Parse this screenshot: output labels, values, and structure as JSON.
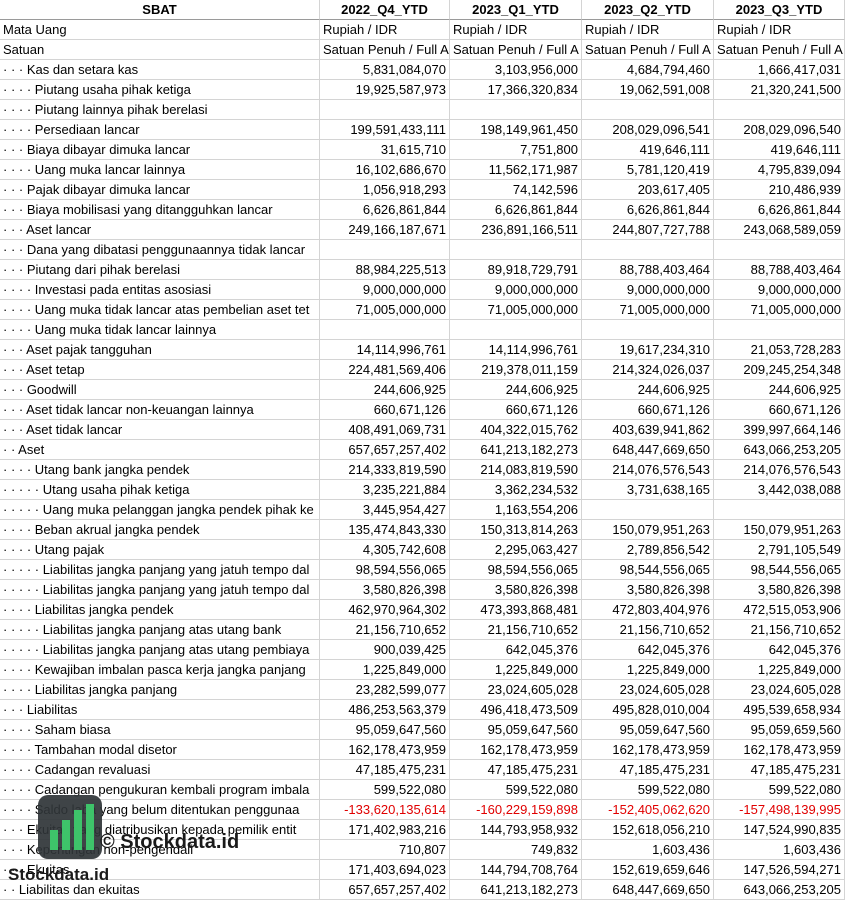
{
  "table": {
    "header": [
      "SBAT",
      "2022_Q4_YTD",
      "2023_Q1_YTD",
      "2023_Q2_YTD",
      "2023_Q3_YTD"
    ],
    "rows": [
      [
        "Mata Uang",
        "Rupiah / IDR",
        "Rupiah / IDR",
        "Rupiah / IDR",
        "Rupiah / IDR"
      ],
      [
        "Satuan",
        "Satuan Penuh / Full A",
        "Satuan Penuh / Full A",
        "Satuan Penuh / Full A",
        "Satuan Penuh / Full A"
      ],
      [
        "· · · Kas dan setara kas",
        "5,831,084,070",
        "3,103,956,000",
        "4,684,794,460",
        "1,666,417,031"
      ],
      [
        "· · · · Piutang usaha pihak ketiga",
        "19,925,587,973",
        "17,366,320,834",
        "19,062,591,008",
        "21,320,241,500"
      ],
      [
        "· · · · Piutang lainnya pihak berelasi",
        null,
        null,
        null,
        null
      ],
      [
        "· · · · Persediaan lancar",
        "199,591,433,111",
        "198,149,961,450",
        "208,029,096,541",
        "208,029,096,540"
      ],
      [
        "· · · Biaya dibayar dimuka lancar",
        "31,615,710",
        "7,751,800",
        "419,646,111",
        "419,646,111"
      ],
      [
        "· · · · Uang muka lancar lainnya",
        "16,102,686,670",
        "11,562,171,987",
        "5,781,120,419",
        "4,795,839,094"
      ],
      [
        "· · · Pajak dibayar dimuka lancar",
        "1,056,918,293",
        "74,142,596",
        "203,617,405",
        "210,486,939"
      ],
      [
        "· · · Biaya mobilisasi yang ditangguhkan lancar",
        "6,626,861,844",
        "6,626,861,844",
        "6,626,861,844",
        "6,626,861,844"
      ],
      [
        "· · · Aset lancar",
        "249,166,187,671",
        "236,891,166,511",
        "244,807,727,788",
        "243,068,589,059"
      ],
      [
        "· · · Dana yang dibatasi penggunaannya tidak lancar",
        null,
        null,
        null,
        null
      ],
      [
        "· · · Piutang dari pihak berelasi",
        "88,984,225,513",
        "89,918,729,791",
        "88,788,403,464",
        "88,788,403,464"
      ],
      [
        "· · · · Investasi pada entitas asosiasi",
        "9,000,000,000",
        "9,000,000,000",
        "9,000,000,000",
        "9,000,000,000"
      ],
      [
        "· · · · Uang muka tidak lancar atas pembelian aset tet",
        "71,005,000,000",
        "71,005,000,000",
        "71,005,000,000",
        "71,005,000,000"
      ],
      [
        "· · · · Uang muka tidak lancar lainnya",
        null,
        null,
        null,
        null
      ],
      [
        "· · · Aset pajak tangguhan",
        "14,114,996,761",
        "14,114,996,761",
        "19,617,234,310",
        "21,053,728,283"
      ],
      [
        "· · · Aset tetap",
        "224,481,569,406",
        "219,378,011,159",
        "214,324,026,037",
        "209,245,254,348"
      ],
      [
        "· · · Goodwill",
        "244,606,925",
        "244,606,925",
        "244,606,925",
        "244,606,925"
      ],
      [
        "· · · Aset tidak lancar non-keuangan lainnya",
        "660,671,126",
        "660,671,126",
        "660,671,126",
        "660,671,126"
      ],
      [
        "· · · Aset tidak lancar",
        "408,491,069,731",
        "404,322,015,762",
        "403,639,941,862",
        "399,997,664,146"
      ],
      [
        "· · Aset",
        "657,657,257,402",
        "641,213,182,273",
        "648,447,669,650",
        "643,066,253,205"
      ],
      [
        "· · · · Utang bank jangka pendek",
        "214,333,819,590",
        "214,083,819,590",
        "214,076,576,543",
        "214,076,576,543"
      ],
      [
        "· · · · · Utang usaha pihak ketiga",
        "3,235,221,884",
        "3,362,234,532",
        "3,731,638,165",
        "3,442,038,088"
      ],
      [
        "· · · · · Uang muka pelanggan jangka pendek pihak ke",
        "3,445,954,427",
        "1,163,554,206",
        null,
        null
      ],
      [
        "· · · · Beban akrual jangka pendek",
        "135,474,843,330",
        "150,313,814,263",
        "150,079,951,263",
        "150,079,951,263"
      ],
      [
        "· · · · Utang pajak",
        "4,305,742,608",
        "2,295,063,427",
        "2,789,856,542",
        "2,791,105,549"
      ],
      [
        "· · · · · Liabilitas jangka panjang yang jatuh tempo dal",
        "98,594,556,065",
        "98,594,556,065",
        "98,544,556,065",
        "98,544,556,065"
      ],
      [
        "· · · · · Liabilitas jangka panjang yang jatuh tempo dal",
        "3,580,826,398",
        "3,580,826,398",
        "3,580,826,398",
        "3,580,826,398"
      ],
      [
        "· · · · Liabilitas jangka pendek",
        "462,970,964,302",
        "473,393,868,481",
        "472,803,404,976",
        "472,515,053,906"
      ],
      [
        "· · · · · Liabilitas jangka panjang atas utang bank",
        "21,156,710,652",
        "21,156,710,652",
        "21,156,710,652",
        "21,156,710,652"
      ],
      [
        "· · · · · Liabilitas jangka panjang atas utang pembiaya",
        "900,039,425",
        "642,045,376",
        "642,045,376",
        "642,045,376"
      ],
      [
        "· · · · Kewajiban imbalan pasca kerja jangka panjang",
        "1,225,849,000",
        "1,225,849,000",
        "1,225,849,000",
        "1,225,849,000"
      ],
      [
        "· · · · Liabilitas jangka panjang",
        "23,282,599,077",
        "23,024,605,028",
        "23,024,605,028",
        "23,024,605,028"
      ],
      [
        "· · · Liabilitas",
        "486,253,563,379",
        "496,418,473,509",
        "495,828,010,004",
        "495,539,658,934"
      ],
      [
        "· · · · Saham biasa",
        "95,059,647,560",
        "95,059,647,560",
        "95,059,647,560",
        "95,059,659,560"
      ],
      [
        "· · · · Tambahan modal disetor",
        "162,178,473,959",
        "162,178,473,959",
        "162,178,473,959",
        "162,178,473,959"
      ],
      [
        "· · · · Cadangan revaluasi",
        "47,185,475,231",
        "47,185,475,231",
        "47,185,475,231",
        "47,185,475,231"
      ],
      [
        "· · · · Cadangan pengukuran kembali program imbala",
        "599,522,080",
        "599,522,080",
        "599,522,080",
        "599,522,080"
      ],
      [
        "· · · · Saldo laba yang belum ditentukan penggunaa",
        "-133,620,135,614",
        "-160,229,159,898",
        "-152,405,062,620",
        "-157,498,139,995"
      ],
      [
        "· · · Ekuitas yang diatribusikan kepada pemilik entit",
        "171,402,983,216",
        "144,793,958,932",
        "152,618,056,210",
        "147,524,990,835"
      ],
      [
        "· · · Kepentingan non-pengendali",
        "710,807",
        "749,832",
        "1,603,436",
        "1,603,436"
      ],
      [
        "· · · Ekuitas",
        "171,403,694,023",
        "144,794,708,764",
        "152,619,659,646",
        "147,526,594,271"
      ],
      [
        "· · Liabilitas dan ekuitas",
        "657,657,257,402",
        "641,213,182,273",
        "648,447,669,650",
        "643,066,253,205"
      ]
    ]
  },
  "watermark": {
    "caption": "© Stockdata.id",
    "brand": "Stockdata.id"
  }
}
